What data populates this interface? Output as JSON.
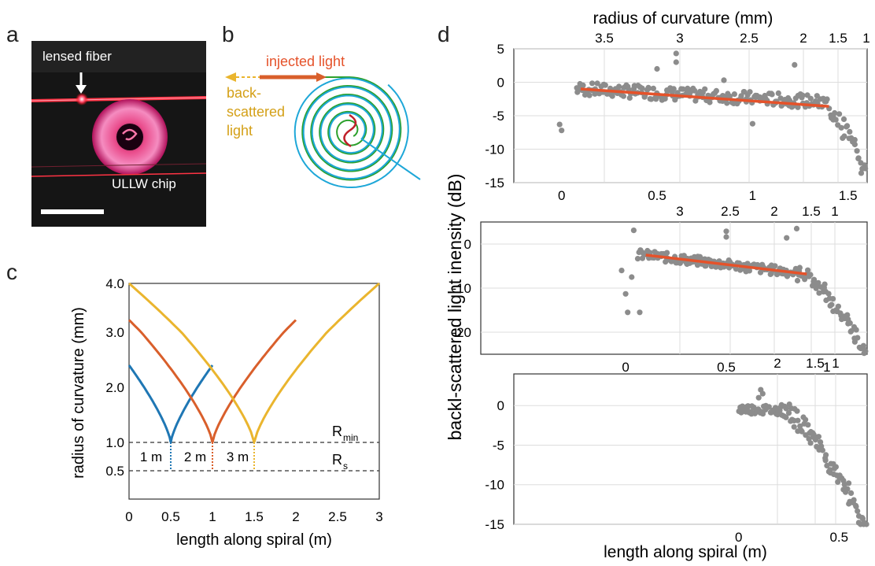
{
  "panel_letters": {
    "a": "a",
    "b": "b",
    "c": "c",
    "d": "d"
  },
  "photo": {
    "fiber_label": "lensed fiber",
    "chip_label": "ULLW chip"
  },
  "schematic": {
    "injected_label": "injected light",
    "back_label_1": "back-",
    "back_label_2": "scattered",
    "back_label_3": "light"
  },
  "colors": {
    "blue": "#1f77b4",
    "orange": "#d95f2b",
    "yellow": "#eab52e",
    "green": "#2ca02c",
    "gray": "#8c8c8c",
    "fit": "#e5522a"
  },
  "chart_data": [
    {
      "type": "line",
      "id": "c",
      "xlabel": "length along spiral (m)",
      "ylabel": "radius of curvature (mm)",
      "xticks": [
        "0",
        "0.5",
        "1",
        "1.5",
        "2",
        "2.5",
        "3"
      ],
      "yticks": [
        "0.5",
        "1.0",
        "2.0",
        "3.0",
        "4.0"
      ],
      "xlim": [
        0,
        3
      ],
      "series": [
        {
          "name": "1 m",
          "color": "blue",
          "x0": 0,
          "x1": 1,
          "center": 0.5,
          "rmax": 2.4
        },
        {
          "name": "2 m",
          "color": "orange",
          "x0": 0,
          "x1": 2,
          "center": 1.0,
          "rmax": 3.25
        },
        {
          "name": "3 m",
          "color": "yellow",
          "x0": 0,
          "x1": 3,
          "center": 1.5,
          "rmax": 4.0
        }
      ],
      "annotations": {
        "rmin": "R",
        "rmin_sub": "min",
        "rs": "R",
        "rs_sub": "s",
        "lengths": [
          "1 m",
          "2 m",
          "3 m"
        ]
      },
      "reference_lines": [
        1.0,
        0.5
      ]
    },
    {
      "type": "scatter",
      "id": "d1",
      "top_axis_label": "radius of curvature (mm)",
      "top_ticks": [
        "3.5",
        "3",
        "2.5",
        "2",
        "1.5",
        "1"
      ],
      "xticks": [
        "0",
        "0.5",
        "1",
        "1.5"
      ],
      "yticks": [
        "5",
        "0",
        "-5",
        "-10",
        "-15"
      ],
      "xlim": [
        -0.25,
        1.6
      ],
      "ylim": [
        -15,
        5
      ],
      "fit": {
        "x": [
          0.1,
          1.4
        ],
        "y": [
          -1,
          -3.6
        ]
      }
    },
    {
      "type": "scatter",
      "id": "d2",
      "top_ticks": [
        "3",
        "2.5",
        "2",
        "1.5",
        "1"
      ],
      "xticks": [
        "0",
        "0.5",
        "1"
      ],
      "yticks": [
        "0",
        "-10",
        "-20"
      ],
      "xlim": [
        -0.72,
        1.2
      ],
      "ylim": [
        -25,
        5
      ],
      "fit": {
        "x": [
          0.1,
          0.9
        ],
        "y": [
          -2.5,
          -6.8
        ]
      }
    },
    {
      "type": "scatter",
      "id": "d3",
      "top_ticks": [
        "2",
        "1.5",
        "1"
      ],
      "xticks": [
        "0",
        "0.5"
      ],
      "yticks": [
        "0",
        "-5",
        "-10",
        "-15"
      ],
      "xlim": [
        -1.12,
        0.64
      ],
      "ylim": [
        -15,
        4
      ]
    }
  ],
  "shared": {
    "ylabel": "backl-scattered light inensity (dB)",
    "xlabel": "length along spiral (m)"
  }
}
